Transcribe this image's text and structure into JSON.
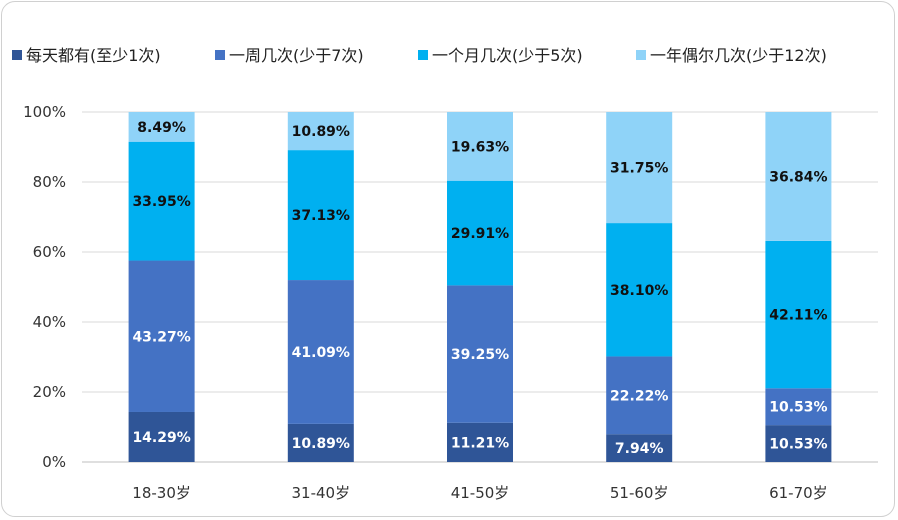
{
  "chart_data": {
    "type": "bar",
    "stacked": true,
    "normalized": true,
    "categories": [
      "18-30岁",
      "31-40岁",
      "41-50岁",
      "51-60岁",
      "61-70岁"
    ],
    "series": [
      {
        "name": "每天都有(至少1次)",
        "color": "#2F5597",
        "label_color": "#ffffff",
        "values": [
          14.29,
          10.89,
          11.21,
          7.94,
          10.53
        ],
        "labels": [
          "14.29%",
          "10.89%",
          "11.21%",
          "7.94%",
          "10.53%"
        ]
      },
      {
        "name": "一周几次(少于7次)",
        "color": "#4472C4",
        "label_color": "#ffffff",
        "values": [
          43.27,
          41.09,
          39.25,
          22.22,
          10.53
        ],
        "labels": [
          "43.27%",
          "41.09%",
          "39.25%",
          "22.22%",
          "10.53%"
        ]
      },
      {
        "name": "一个月几次(少于5次)",
        "color": "#00B0F0",
        "label_color": "#111111",
        "values": [
          33.95,
          37.13,
          29.91,
          38.1,
          42.11
        ],
        "labels": [
          "33.95%",
          "37.13%",
          "29.91%",
          "38.10%",
          "42.11%"
        ]
      },
      {
        "name": "一年偶尔几次(少于12次)",
        "color": "#8FD3F8",
        "label_color": "#111111",
        "values": [
          8.49,
          10.89,
          19.63,
          31.75,
          36.84
        ],
        "labels": [
          "8.49%",
          "10.89%",
          "19.63%",
          "31.75%",
          "36.84%"
        ]
      }
    ],
    "y_ticks": [
      "0%",
      "20%",
      "40%",
      "60%",
      "80%",
      "100%"
    ],
    "ylim": [
      0,
      100
    ],
    "grid": true,
    "legend_position": "top"
  }
}
